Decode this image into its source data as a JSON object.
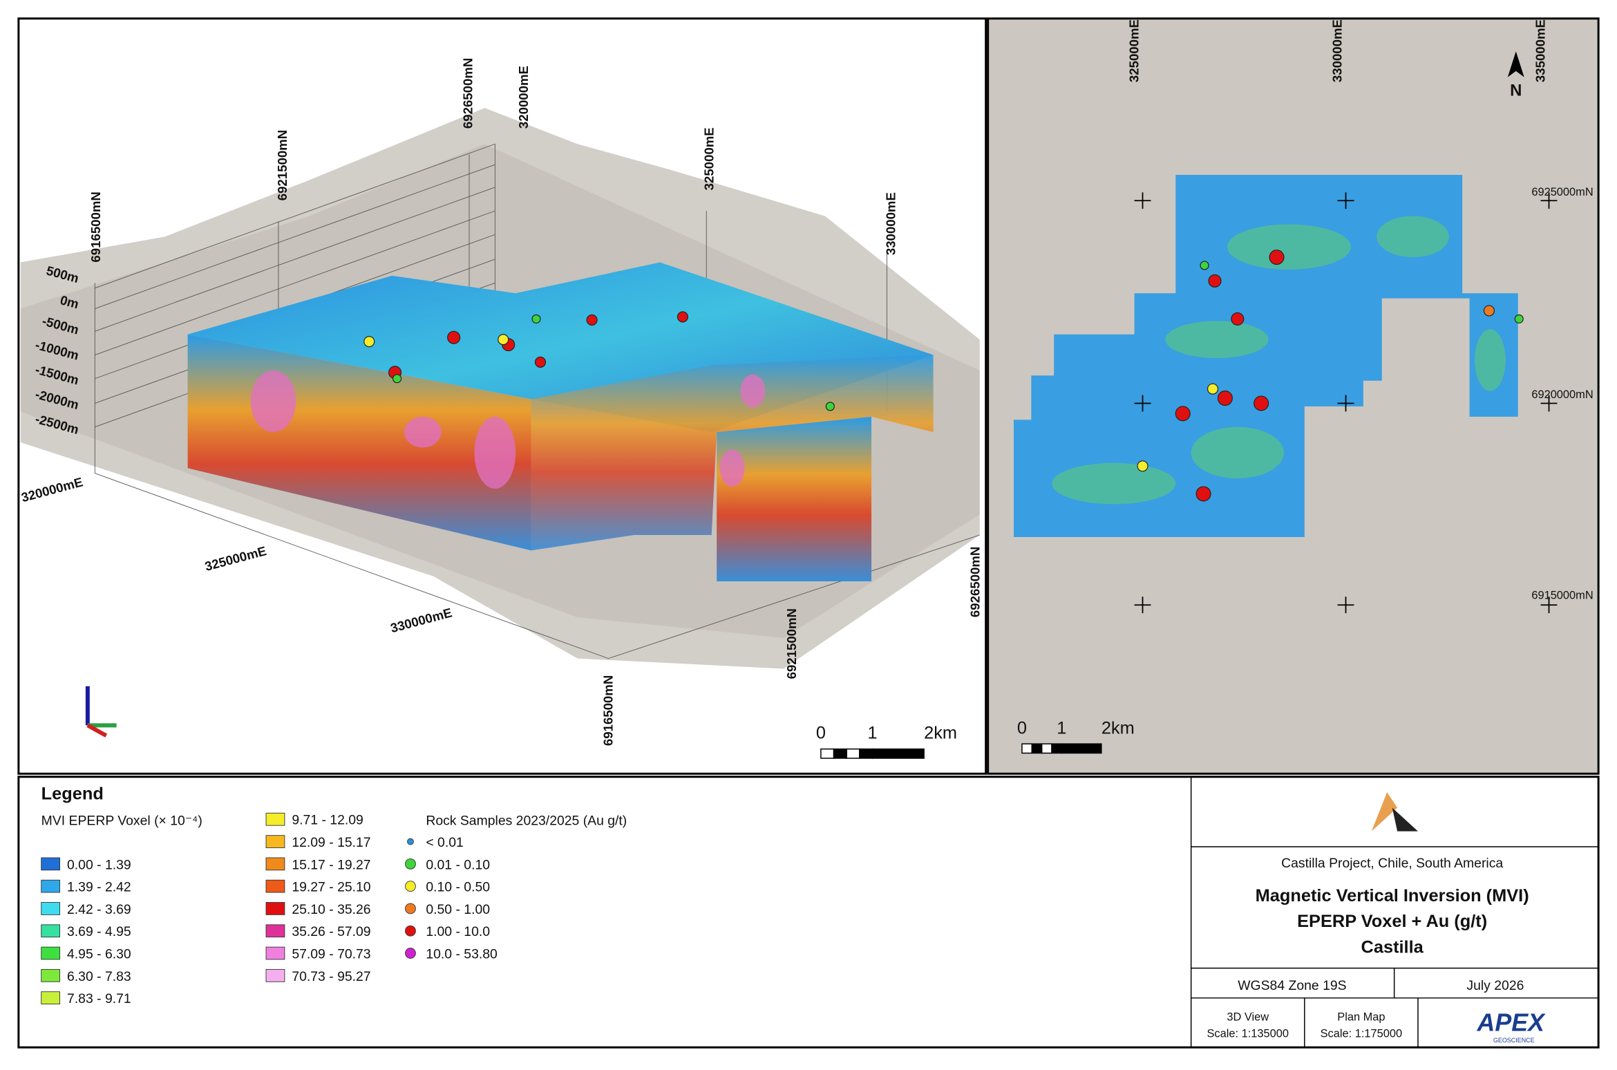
{
  "view3d": {
    "northing_labels_top": [
      "6916500mN",
      "6921500mN",
      "6926500mN"
    ],
    "easting_labels_top": [
      "320000mE",
      "325000mE",
      "330000mE"
    ],
    "elevation_labels": [
      "500m",
      "0m",
      "-500m",
      "-1000m",
      "-1500m",
      "-2000m",
      "-2500m"
    ],
    "easting_labels_bottom": [
      "320000mE",
      "325000mE",
      "330000mE"
    ],
    "northing_labels_bottom": [
      "6926500mN",
      "6921500mN",
      "6916500mN"
    ],
    "scale_bar": [
      "0",
      "1",
      "2km"
    ]
  },
  "plan_map": {
    "easting_labels": [
      "325000mE",
      "330000mE",
      "335000mE"
    ],
    "northing_labels": [
      "6925000mN",
      "6920000mN",
      "6915000mN"
    ],
    "scale_bar": [
      "0",
      "1",
      "2km"
    ]
  },
  "legend": {
    "title": "Legend",
    "voxel": {
      "title": "MVI EPERP Voxel (× 10⁻⁴)",
      "classes": [
        {
          "label": "0.00 - 1.39",
          "color": "#1f6fd6"
        },
        {
          "label": "1.39 - 2.42",
          "color": "#2ea8e8"
        },
        {
          "label": "2.42 - 3.69",
          "color": "#3fdcf0"
        },
        {
          "label": "3.69 - 4.95",
          "color": "#35e0a0"
        },
        {
          "label": "4.95 - 6.30",
          "color": "#3ee040"
        },
        {
          "label": "6.30 - 7.83",
          "color": "#7ee83a"
        },
        {
          "label": "7.83 - 9.71",
          "color": "#c8f03a"
        },
        {
          "label": "9.71 - 12.09",
          "color": "#f5ec2a"
        },
        {
          "label": "12.09 - 15.17",
          "color": "#f7b81f"
        },
        {
          "label": "15.17 - 19.27",
          "color": "#f08a1a"
        },
        {
          "label": "19.27 - 25.10",
          "color": "#ee5a18"
        },
        {
          "label": "25.10 - 35.26",
          "color": "#e01010"
        },
        {
          "label": "35.26 - 57.09",
          "color": "#e0309a"
        },
        {
          "label": "57.09 - 70.73",
          "color": "#f080e0"
        },
        {
          "label": "70.73 - 95.27",
          "color": "#f4b0ee"
        }
      ]
    },
    "samples": {
      "title": "Rock Samples 2023/2025 (Au g/t)",
      "classes": [
        {
          "label": "< 0.01",
          "color": "#2a8fd8"
        },
        {
          "label": "0.01 - 0.10",
          "color": "#3ed43a"
        },
        {
          "label": "0.10 - 0.50",
          "color": "#f5ec2a"
        },
        {
          "label": "0.50 - 1.00",
          "color": "#ee7a20"
        },
        {
          "label": "1.00 - 10.0",
          "color": "#e01010"
        },
        {
          "label": "10.0 - 53.80",
          "color": "#d020d0"
        }
      ]
    }
  },
  "title_block": {
    "project": "Castilla Project, Chile, South America",
    "title_lines": [
      "Magnetic Vertical Inversion (MVI)",
      "EPERP Voxel + Au (g/t)",
      "Castilla"
    ],
    "datum": "WGS84 Zone 19S",
    "date": "July 2026",
    "view3d_label": "3D View",
    "view3d_scale": "Scale: 1:135000",
    "plan_label": "Plan Map",
    "plan_scale": "Scale: 1:175000",
    "company": "APEX",
    "company_sub": "GEOSCIENCE"
  }
}
